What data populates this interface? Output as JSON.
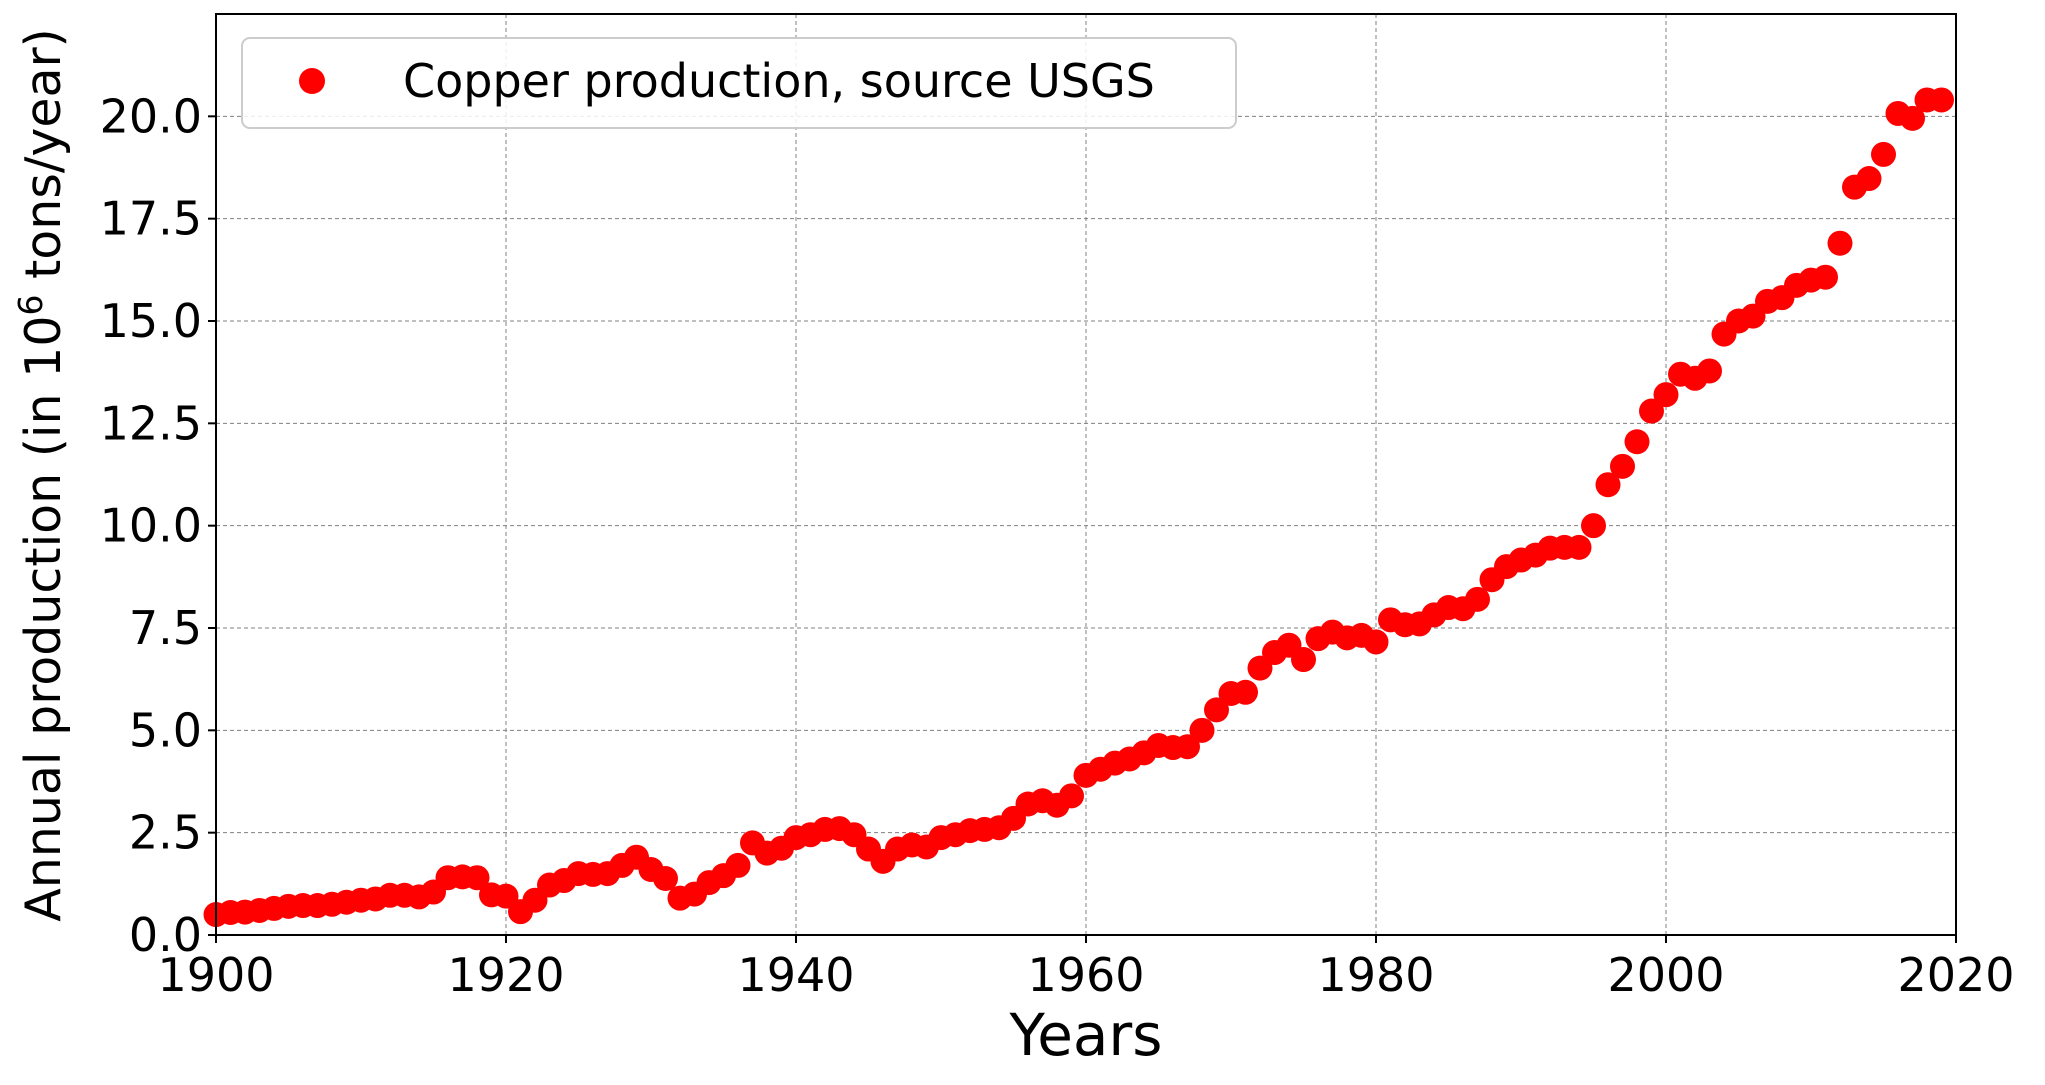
{
  "chart_data": {
    "type": "scatter",
    "xlabel": "Years",
    "ylabel_prefix": "Annual production (in 10",
    "ylabel_sup": "6",
    "ylabel_suffix": " tons/year)",
    "xlim": [
      1900,
      2020
    ],
    "ylim": [
      0,
      22.5
    ],
    "xticks": [
      1900,
      1920,
      1940,
      1960,
      1980,
      2000,
      2020
    ],
    "yticks": [
      "0.0",
      "2.5",
      "5.0",
      "7.5",
      "10.0",
      "12.5",
      "15.0",
      "17.5",
      "20.0"
    ],
    "grid": true,
    "legend_position": "top-left",
    "marker_color": "#ff0000",
    "series": [
      {
        "name": "Copper production, source USGS",
        "x": [
          1900,
          1901,
          1902,
          1903,
          1904,
          1905,
          1906,
          1907,
          1908,
          1909,
          1910,
          1911,
          1912,
          1913,
          1914,
          1915,
          1916,
          1917,
          1918,
          1919,
          1920,
          1921,
          1922,
          1923,
          1924,
          1925,
          1926,
          1927,
          1928,
          1929,
          1930,
          1931,
          1932,
          1933,
          1934,
          1935,
          1936,
          1937,
          1938,
          1939,
          1940,
          1941,
          1942,
          1943,
          1944,
          1945,
          1946,
          1947,
          1948,
          1949,
          1950,
          1951,
          1952,
          1953,
          1954,
          1955,
          1956,
          1957,
          1958,
          1959,
          1960,
          1961,
          1962,
          1963,
          1964,
          1965,
          1966,
          1967,
          1968,
          1969,
          1970,
          1971,
          1972,
          1973,
          1974,
          1975,
          1976,
          1977,
          1978,
          1979,
          1980,
          1981,
          1982,
          1983,
          1984,
          1985,
          1986,
          1987,
          1988,
          1989,
          1990,
          1991,
          1992,
          1993,
          1994,
          1995,
          1996,
          1997,
          1998,
          1999,
          2000,
          2001,
          2002,
          2003,
          2004,
          2005,
          2006,
          2007,
          2008,
          2009,
          2010,
          2011,
          2012,
          2013,
          2014,
          2015,
          2016,
          2017,
          2018,
          2019
        ],
        "y": [
          0.5,
          0.55,
          0.56,
          0.6,
          0.65,
          0.7,
          0.72,
          0.72,
          0.75,
          0.8,
          0.85,
          0.88,
          0.97,
          0.97,
          0.93,
          1.05,
          1.4,
          1.42,
          1.4,
          0.98,
          0.95,
          0.57,
          0.85,
          1.22,
          1.33,
          1.5,
          1.48,
          1.5,
          1.7,
          1.9,
          1.6,
          1.38,
          0.9,
          1.0,
          1.28,
          1.45,
          1.7,
          2.25,
          2.0,
          2.12,
          2.38,
          2.45,
          2.58,
          2.6,
          2.45,
          2.1,
          1.8,
          2.1,
          2.2,
          2.15,
          2.38,
          2.45,
          2.55,
          2.58,
          2.62,
          2.85,
          3.2,
          3.28,
          3.17,
          3.4,
          3.9,
          4.05,
          4.2,
          4.3,
          4.45,
          4.63,
          4.58,
          4.6,
          5.0,
          5.5,
          5.9,
          5.93,
          6.52,
          6.9,
          7.08,
          6.73,
          7.24,
          7.4,
          7.26,
          7.32,
          7.16,
          7.7,
          7.58,
          7.6,
          7.82,
          8.0,
          7.97,
          8.2,
          8.68,
          9.0,
          9.16,
          9.28,
          9.45,
          9.47,
          9.47,
          10.0,
          11.0,
          11.45,
          12.05,
          12.8,
          13.2,
          13.7,
          13.6,
          13.78,
          14.68,
          15.0,
          15.12,
          15.48,
          15.57,
          15.87,
          16.0,
          16.07,
          16.9,
          18.27,
          18.48,
          19.07,
          20.07,
          19.95,
          20.4,
          20.4
        ]
      }
    ]
  }
}
